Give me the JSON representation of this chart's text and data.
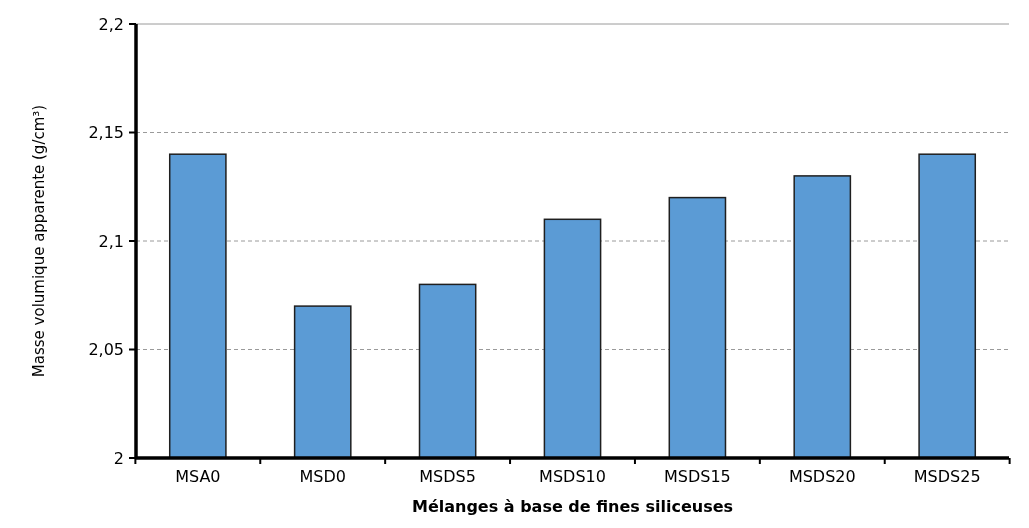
{
  "chart_data": {
    "type": "bar",
    "xlabel": "Mélanges à base de fines siliceuses",
    "ylabel": "Masse volumique apparente (g/cm³)",
    "categories": [
      "MSA0",
      "MSD0",
      "MSDS5",
      "MSDS10",
      "MSDS15",
      "MSDS20",
      "MSDS25"
    ],
    "values": [
      2.14,
      2.07,
      2.08,
      2.11,
      2.12,
      2.13,
      2.14
    ],
    "color": "#5b9bd5",
    "ylim": [
      2,
      2.2
    ],
    "yticks": [
      {
        "value": 2,
        "label": "2"
      },
      {
        "value": 2.05,
        "label": "2,05"
      },
      {
        "value": 2.1,
        "label": "2,1"
      },
      {
        "value": 2.15,
        "label": "2,15"
      },
      {
        "value": 2.2,
        "label": "2,2"
      }
    ],
    "grid": "y"
  }
}
